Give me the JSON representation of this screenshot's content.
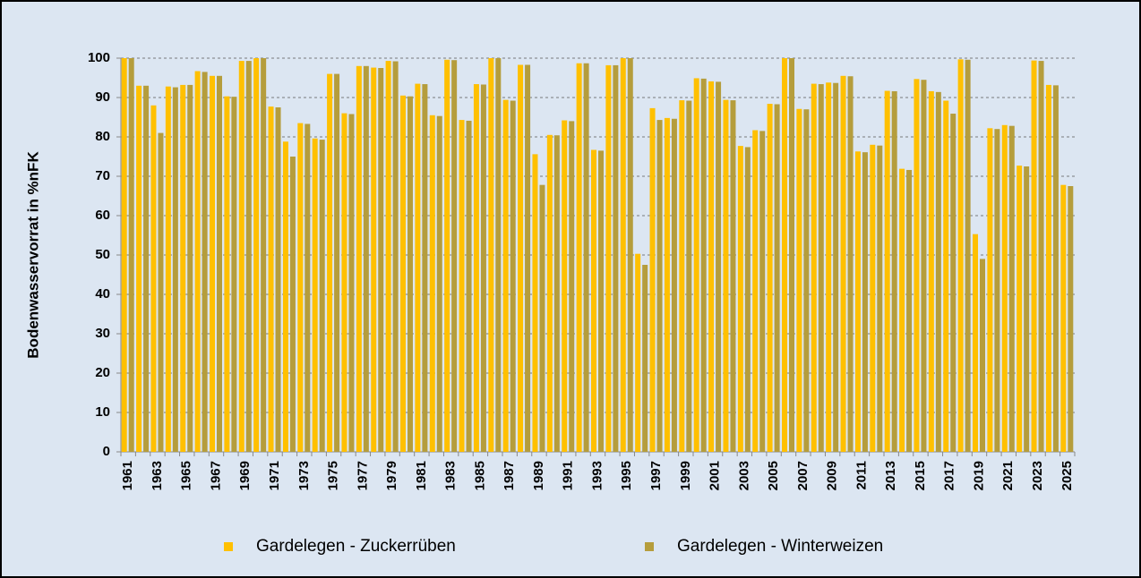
{
  "chart_data": {
    "type": "bar",
    "y_label": "Bodenwasservorrat in %nFK",
    "categories": [
      "1961",
      null,
      "1963",
      null,
      "1965",
      null,
      "1967",
      null,
      "1969",
      null,
      "1971",
      null,
      "1973",
      null,
      "1975",
      null,
      "1977",
      null,
      "1979",
      null,
      "1981",
      null,
      "1983",
      null,
      "1985",
      null,
      "1987",
      null,
      "1989",
      null,
      "1991",
      null,
      "1993",
      null,
      "1995",
      null,
      "1997",
      null,
      "1999",
      null,
      "2001",
      null,
      "2003",
      null,
      "2005",
      null,
      "2007",
      null,
      "2009",
      null,
      "2011",
      null,
      "2013",
      null,
      "2015",
      null,
      "2017",
      null,
      "2019",
      null,
      "2021",
      null,
      "2023",
      null,
      "2025"
    ],
    "series": [
      {
        "name": "Gardelegen - Zuckerrüben",
        "color": "#ffc000",
        "values": [
          100,
          93,
          88,
          92.8,
          93.2,
          96.7,
          95.5,
          90.3,
          99.3,
          100,
          87.7,
          78.8,
          83.5,
          79.6,
          96,
          86,
          98,
          97.6,
          99.3,
          90.5,
          93.5,
          85.5,
          99.6,
          84.3,
          93.4,
          100,
          89.4,
          98.3,
          75.6,
          80.5,
          84.2,
          98.7,
          76.7,
          98.2,
          100,
          50.3,
          87.3,
          84.8,
          89.3,
          94.9,
          94.1,
          89.4,
          77.7,
          81.7,
          88.4,
          100,
          87.1,
          93.5,
          93.8,
          95.5,
          76.3,
          78,
          91.7,
          71.9,
          94.7,
          91.6,
          89.2,
          99.7,
          55.3,
          82.2,
          83,
          72.7,
          99.4,
          93.2,
          67.8
        ]
      },
      {
        "name": "Gardelegen - Winterweizen",
        "color": "#b59d3c",
        "values": [
          100,
          93,
          81,
          92.6,
          93.2,
          96.5,
          95.5,
          90.2,
          99.3,
          100,
          87.5,
          75,
          83.3,
          79.3,
          96,
          85.8,
          98,
          97.5,
          99.2,
          90.3,
          93.4,
          85.3,
          99.5,
          84.1,
          93.3,
          100,
          89.2,
          98.3,
          67.8,
          80.4,
          84,
          98.7,
          76.5,
          98.2,
          100,
          47.5,
          84.3,
          84.6,
          89.2,
          94.8,
          94,
          89.3,
          77.4,
          81.5,
          88.3,
          100,
          87,
          93.4,
          93.7,
          95.4,
          76.1,
          77.8,
          91.6,
          71.6,
          94.5,
          91.4,
          85.9,
          99.6,
          49,
          82,
          82.8,
          72.5,
          99.3,
          93.1,
          67.5
        ]
      }
    ],
    "ylim": [
      0,
      100
    ],
    "yticks": [
      0,
      10,
      20,
      30,
      40,
      50,
      60,
      70,
      80,
      90,
      100
    ],
    "grid": true,
    "legend": "bottom"
  }
}
